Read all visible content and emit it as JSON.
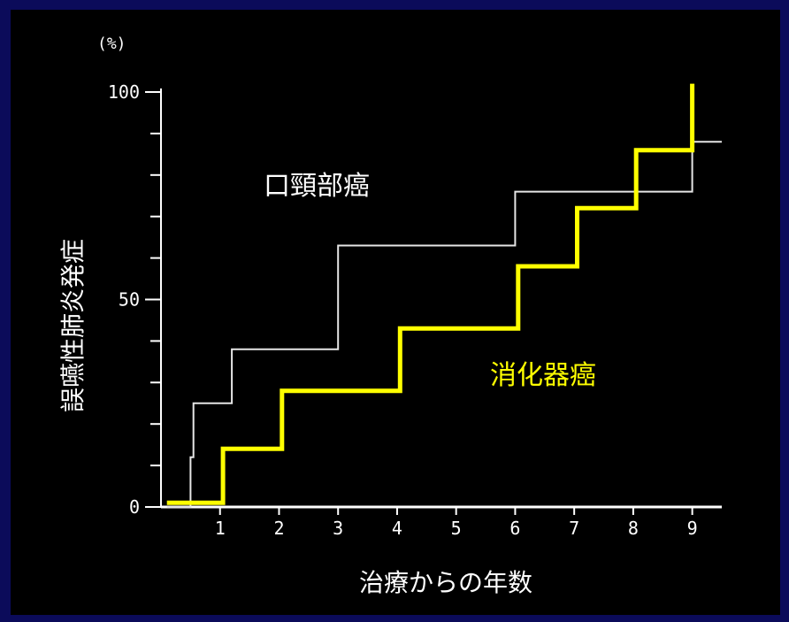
{
  "chart_data": {
    "type": "line",
    "step": true,
    "ylabel": "誤嚥性肺炎発症",
    "yunit": "(%)",
    "xlabel": "治療からの年数",
    "xlim": [
      0,
      9.5
    ],
    "ylim": [
      0,
      100
    ],
    "xticks": [
      1,
      2,
      3,
      4,
      5,
      6,
      7,
      8,
      9
    ],
    "yticks_labeled": [
      0,
      50,
      100
    ],
    "yticks_minor": [
      10,
      20,
      30,
      40,
      60,
      70,
      80,
      90
    ],
    "grid": false,
    "colors": {
      "background": "#000000",
      "frame": "#0b0b5a",
      "axis": "#ffffff"
    },
    "series": [
      {
        "name": "口頸部癌",
        "color": "#e6e6e6",
        "points": [
          [
            0.1,
            0
          ],
          [
            0.5,
            0
          ],
          [
            0.5,
            12
          ],
          [
            0.55,
            12
          ],
          [
            0.55,
            25
          ],
          [
            1.2,
            25
          ],
          [
            1.2,
            38
          ],
          [
            3.0,
            38
          ],
          [
            3.0,
            63
          ],
          [
            6.0,
            63
          ],
          [
            6.0,
            76
          ],
          [
            9.0,
            76
          ],
          [
            9.0,
            88
          ],
          [
            9.5,
            88
          ]
        ]
      },
      {
        "name": "消化器癌",
        "color": "#ffff00",
        "points": [
          [
            0.1,
            1
          ],
          [
            1.05,
            1
          ],
          [
            1.05,
            14
          ],
          [
            2.05,
            14
          ],
          [
            2.05,
            28
          ],
          [
            4.05,
            28
          ],
          [
            4.05,
            43
          ],
          [
            6.05,
            43
          ],
          [
            6.05,
            58
          ],
          [
            7.05,
            58
          ],
          [
            7.05,
            72
          ],
          [
            8.05,
            72
          ],
          [
            8.05,
            86
          ],
          [
            9.0,
            86
          ],
          [
            9.0,
            102
          ]
        ]
      }
    ]
  }
}
